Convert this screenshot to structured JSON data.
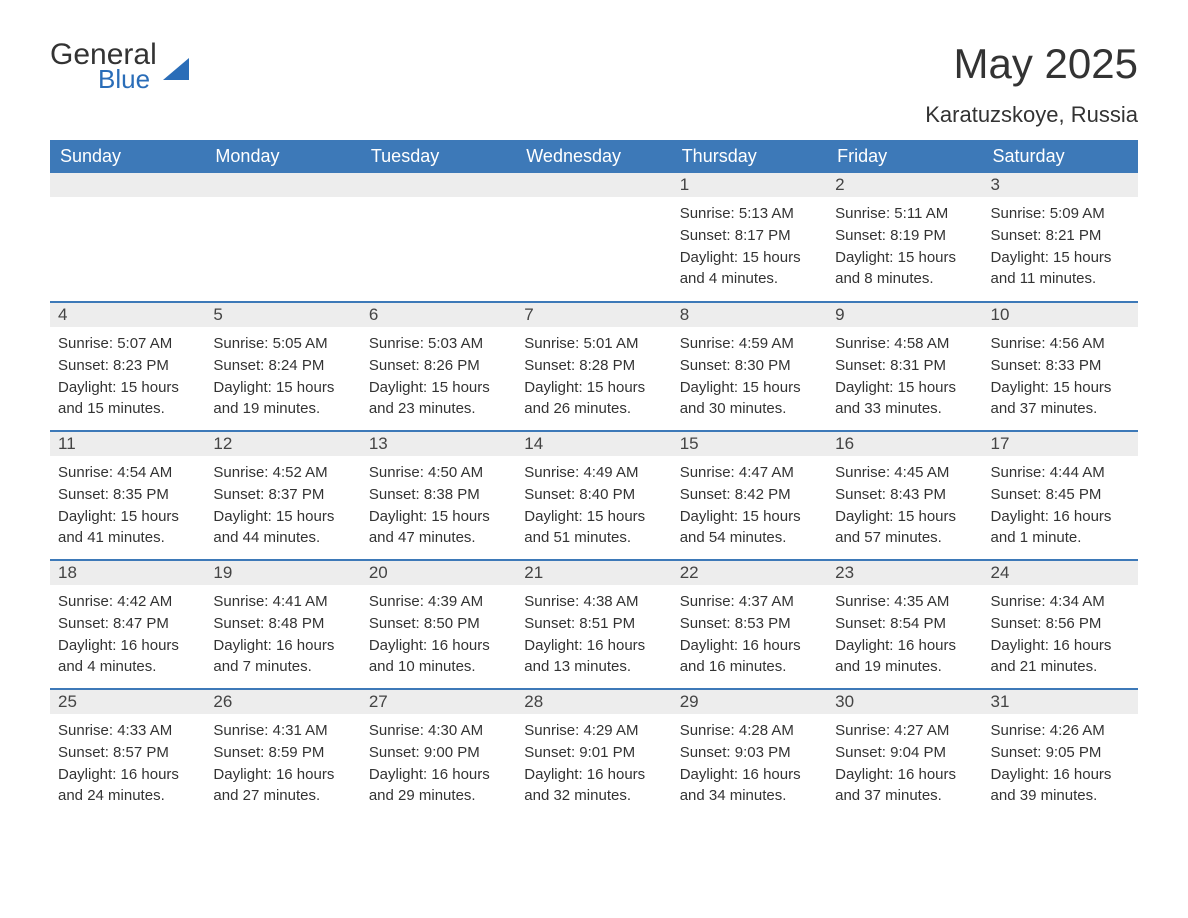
{
  "logo": {
    "text1": "General",
    "text2": "Blue"
  },
  "title": "May 2025",
  "location": "Karatuzskoye, Russia",
  "colors": {
    "header_bg": "#3d79b8",
    "header_text": "#ffffff",
    "daynum_bg": "#ededed",
    "text": "#333333",
    "accent": "#2a6db8",
    "background": "#ffffff"
  },
  "weekdays": [
    "Sunday",
    "Monday",
    "Tuesday",
    "Wednesday",
    "Thursday",
    "Friday",
    "Saturday"
  ],
  "weeks": [
    [
      {
        "n": "",
        "sr": "",
        "ss": "",
        "dl": ""
      },
      {
        "n": "",
        "sr": "",
        "ss": "",
        "dl": ""
      },
      {
        "n": "",
        "sr": "",
        "ss": "",
        "dl": ""
      },
      {
        "n": "",
        "sr": "",
        "ss": "",
        "dl": ""
      },
      {
        "n": "1",
        "sr": "Sunrise: 5:13 AM",
        "ss": "Sunset: 8:17 PM",
        "dl": "Daylight: 15 hours and 4 minutes."
      },
      {
        "n": "2",
        "sr": "Sunrise: 5:11 AM",
        "ss": "Sunset: 8:19 PM",
        "dl": "Daylight: 15 hours and 8 minutes."
      },
      {
        "n": "3",
        "sr": "Sunrise: 5:09 AM",
        "ss": "Sunset: 8:21 PM",
        "dl": "Daylight: 15 hours and 11 minutes."
      }
    ],
    [
      {
        "n": "4",
        "sr": "Sunrise: 5:07 AM",
        "ss": "Sunset: 8:23 PM",
        "dl": "Daylight: 15 hours and 15 minutes."
      },
      {
        "n": "5",
        "sr": "Sunrise: 5:05 AM",
        "ss": "Sunset: 8:24 PM",
        "dl": "Daylight: 15 hours and 19 minutes."
      },
      {
        "n": "6",
        "sr": "Sunrise: 5:03 AM",
        "ss": "Sunset: 8:26 PM",
        "dl": "Daylight: 15 hours and 23 minutes."
      },
      {
        "n": "7",
        "sr": "Sunrise: 5:01 AM",
        "ss": "Sunset: 8:28 PM",
        "dl": "Daylight: 15 hours and 26 minutes."
      },
      {
        "n": "8",
        "sr": "Sunrise: 4:59 AM",
        "ss": "Sunset: 8:30 PM",
        "dl": "Daylight: 15 hours and 30 minutes."
      },
      {
        "n": "9",
        "sr": "Sunrise: 4:58 AM",
        "ss": "Sunset: 8:31 PM",
        "dl": "Daylight: 15 hours and 33 minutes."
      },
      {
        "n": "10",
        "sr": "Sunrise: 4:56 AM",
        "ss": "Sunset: 8:33 PM",
        "dl": "Daylight: 15 hours and 37 minutes."
      }
    ],
    [
      {
        "n": "11",
        "sr": "Sunrise: 4:54 AM",
        "ss": "Sunset: 8:35 PM",
        "dl": "Daylight: 15 hours and 41 minutes."
      },
      {
        "n": "12",
        "sr": "Sunrise: 4:52 AM",
        "ss": "Sunset: 8:37 PM",
        "dl": "Daylight: 15 hours and 44 minutes."
      },
      {
        "n": "13",
        "sr": "Sunrise: 4:50 AM",
        "ss": "Sunset: 8:38 PM",
        "dl": "Daylight: 15 hours and 47 minutes."
      },
      {
        "n": "14",
        "sr": "Sunrise: 4:49 AM",
        "ss": "Sunset: 8:40 PM",
        "dl": "Daylight: 15 hours and 51 minutes."
      },
      {
        "n": "15",
        "sr": "Sunrise: 4:47 AM",
        "ss": "Sunset: 8:42 PM",
        "dl": "Daylight: 15 hours and 54 minutes."
      },
      {
        "n": "16",
        "sr": "Sunrise: 4:45 AM",
        "ss": "Sunset: 8:43 PM",
        "dl": "Daylight: 15 hours and 57 minutes."
      },
      {
        "n": "17",
        "sr": "Sunrise: 4:44 AM",
        "ss": "Sunset: 8:45 PM",
        "dl": "Daylight: 16 hours and 1 minute."
      }
    ],
    [
      {
        "n": "18",
        "sr": "Sunrise: 4:42 AM",
        "ss": "Sunset: 8:47 PM",
        "dl": "Daylight: 16 hours and 4 minutes."
      },
      {
        "n": "19",
        "sr": "Sunrise: 4:41 AM",
        "ss": "Sunset: 8:48 PM",
        "dl": "Daylight: 16 hours and 7 minutes."
      },
      {
        "n": "20",
        "sr": "Sunrise: 4:39 AM",
        "ss": "Sunset: 8:50 PM",
        "dl": "Daylight: 16 hours and 10 minutes."
      },
      {
        "n": "21",
        "sr": "Sunrise: 4:38 AM",
        "ss": "Sunset: 8:51 PM",
        "dl": "Daylight: 16 hours and 13 minutes."
      },
      {
        "n": "22",
        "sr": "Sunrise: 4:37 AM",
        "ss": "Sunset: 8:53 PM",
        "dl": "Daylight: 16 hours and 16 minutes."
      },
      {
        "n": "23",
        "sr": "Sunrise: 4:35 AM",
        "ss": "Sunset: 8:54 PM",
        "dl": "Daylight: 16 hours and 19 minutes."
      },
      {
        "n": "24",
        "sr": "Sunrise: 4:34 AM",
        "ss": "Sunset: 8:56 PM",
        "dl": "Daylight: 16 hours and 21 minutes."
      }
    ],
    [
      {
        "n": "25",
        "sr": "Sunrise: 4:33 AM",
        "ss": "Sunset: 8:57 PM",
        "dl": "Daylight: 16 hours and 24 minutes."
      },
      {
        "n": "26",
        "sr": "Sunrise: 4:31 AM",
        "ss": "Sunset: 8:59 PM",
        "dl": "Daylight: 16 hours and 27 minutes."
      },
      {
        "n": "27",
        "sr": "Sunrise: 4:30 AM",
        "ss": "Sunset: 9:00 PM",
        "dl": "Daylight: 16 hours and 29 minutes."
      },
      {
        "n": "28",
        "sr": "Sunrise: 4:29 AM",
        "ss": "Sunset: 9:01 PM",
        "dl": "Daylight: 16 hours and 32 minutes."
      },
      {
        "n": "29",
        "sr": "Sunrise: 4:28 AM",
        "ss": "Sunset: 9:03 PM",
        "dl": "Daylight: 16 hours and 34 minutes."
      },
      {
        "n": "30",
        "sr": "Sunrise: 4:27 AM",
        "ss": "Sunset: 9:04 PM",
        "dl": "Daylight: 16 hours and 37 minutes."
      },
      {
        "n": "31",
        "sr": "Sunrise: 4:26 AM",
        "ss": "Sunset: 9:05 PM",
        "dl": "Daylight: 16 hours and 39 minutes."
      }
    ]
  ]
}
